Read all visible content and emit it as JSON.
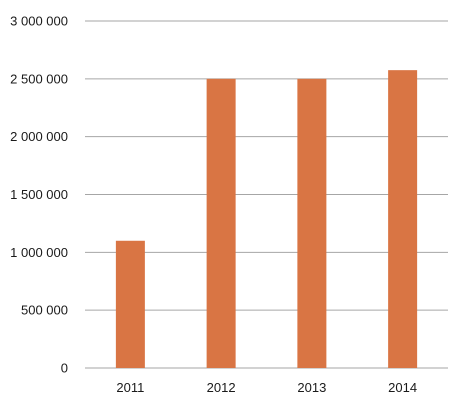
{
  "chart_data": {
    "type": "bar",
    "categories": [
      "2011",
      "2012",
      "2013",
      "2014"
    ],
    "values": [
      1100000,
      2500000,
      2500000,
      2575000
    ],
    "ylim": [
      0,
      3000000
    ],
    "yticks": [
      0,
      500000,
      1000000,
      1500000,
      2000000,
      2500000,
      3000000
    ],
    "ytick_labels": [
      "0",
      "500 000",
      "1 000 000",
      "1 500 000",
      "2 000 000",
      "2 500 000",
      "3 000 000"
    ],
    "grid": true,
    "legend": "none",
    "bar_color": "#d97544",
    "grid_color": "#a6a6a6"
  }
}
